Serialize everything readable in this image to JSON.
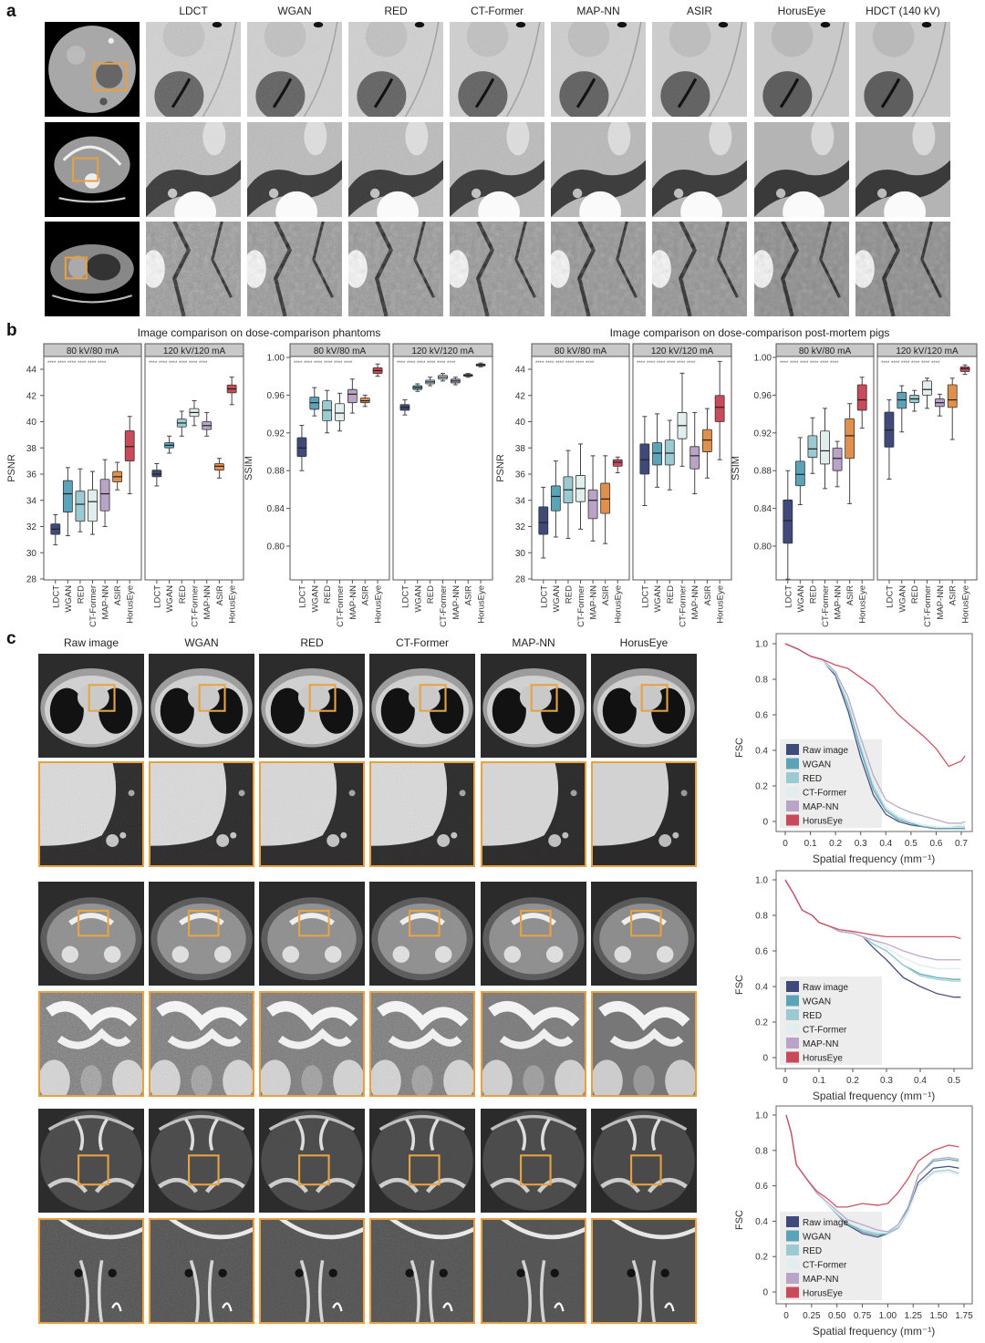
{
  "panel_labels": {
    "a": "a",
    "b": "b",
    "c": "c"
  },
  "panel_a": {
    "columns": [
      "LDCT",
      "WGAN",
      "RED",
      "CT-Former",
      "MAP-NN",
      "ASIR",
      "HorusEye",
      "HDCT (140 kV)"
    ],
    "rows": [
      "phantom",
      "abdomen",
      "thorax"
    ]
  },
  "panel_c": {
    "columns": [
      "Raw image",
      "WGAN",
      "RED",
      "CT-Former",
      "MAP-NN",
      "HorusEye"
    ],
    "rows": [
      "chest",
      "pelvis",
      "skull-base"
    ]
  },
  "colors": {
    "LDCT": "#3f4a7a",
    "WGAN": "#5aa3b8",
    "RED": "#9ccad3",
    "CT-Former": "#e2eeee",
    "MAP-NN": "#b9a3c7",
    "ASIR": "#e0904a",
    "HorusEye": "#c94a5a",
    "Raw image": "#3f4a7a",
    "highlight": "#e8a040"
  },
  "chart_data": [
    {
      "type": "box",
      "title": "Image comparison on dose-comparison phantoms",
      "ylabel": "PSNR",
      "ylim": [
        28,
        45
      ],
      "yticks": [
        28,
        30,
        32,
        34,
        36,
        38,
        40,
        42,
        44
      ],
      "categories": [
        "LDCT",
        "WGAN",
        "RED",
        "CT-Former",
        "MAP-NN",
        "ASIR",
        "HorusEye"
      ],
      "significance": "****",
      "facets": [
        {
          "name": "80 kV/80 mA",
          "boxes": [
            [
              30.6,
              31.4,
              31.8,
              32.2,
              32.9
            ],
            [
              31.3,
              33.1,
              34.5,
              35.5,
              36.5
            ],
            [
              31.6,
              32.4,
              33.7,
              34.7,
              36.4
            ],
            [
              31.4,
              32.4,
              33.9,
              34.8,
              36.2
            ],
            [
              32.0,
              33.2,
              34.5,
              35.6,
              37.1
            ],
            [
              34.8,
              35.4,
              35.8,
              36.2,
              36.9
            ],
            [
              34.5,
              37.0,
              38.1,
              39.3,
              40.4
            ]
          ]
        },
        {
          "name": "120 kV/120 mA",
          "boxes": [
            [
              35.1,
              35.8,
              36.0,
              36.3,
              36.8
            ],
            [
              37.6,
              38.0,
              38.2,
              38.4,
              38.9
            ],
            [
              38.9,
              39.6,
              39.9,
              40.2,
              40.8
            ],
            [
              39.7,
              40.4,
              40.7,
              41.0,
              41.6
            ],
            [
              38.9,
              39.4,
              39.7,
              40.0,
              40.7
            ],
            [
              35.7,
              36.3,
              36.6,
              36.8,
              37.2
            ],
            [
              41.3,
              42.2,
              42.5,
              42.8,
              43.4
            ]
          ]
        }
      ]
    },
    {
      "type": "box",
      "title": "",
      "ylabel": "SSIM",
      "ylim": [
        0.765,
        1.005
      ],
      "yticks": [
        "0.80",
        "0.84",
        "0.88",
        "0.92",
        "0.96",
        "1.00"
      ],
      "categories": [
        "LDCT",
        "WGAN",
        "RED",
        "CT-Former",
        "MAP-NN",
        "ASIR",
        "HorusEye"
      ],
      "significance": "****",
      "facets": [
        {
          "name": "80 kV/80 mA",
          "boxes": [
            [
              0.88,
              0.895,
              0.904,
              0.915,
              0.928
            ],
            [
              0.938,
              0.945,
              0.952,
              0.958,
              0.968
            ],
            [
              0.92,
              0.933,
              0.944,
              0.954,
              0.965
            ],
            [
              0.922,
              0.933,
              0.941,
              0.951,
              0.962
            ],
            [
              0.941,
              0.952,
              0.961,
              0.966,
              0.977
            ],
            [
              0.948,
              0.952,
              0.954,
              0.957,
              0.96
            ],
            [
              0.98,
              0.983,
              0.986,
              0.989,
              0.993
            ]
          ]
        },
        {
          "name": "120 kV/120 mA",
          "boxes": [
            [
              0.939,
              0.944,
              0.947,
              0.95,
              0.955
            ],
            [
              0.964,
              0.966,
              0.968,
              0.97,
              0.972
            ],
            [
              0.97,
              0.972,
              0.974,
              0.976,
              0.979
            ],
            [
              0.975,
              0.977,
              0.979,
              0.981,
              0.983
            ],
            [
              0.971,
              0.973,
              0.975,
              0.977,
              0.979
            ],
            [
              0.979,
              0.98,
              0.981,
              0.982,
              0.983
            ],
            [
              0.99,
              0.991,
              0.992,
              0.993,
              0.994
            ]
          ]
        }
      ]
    },
    {
      "type": "box",
      "title": "Image comparison on dose-comparison post-mortem pigs",
      "ylabel": "PSNR",
      "ylim": [
        28,
        45
      ],
      "yticks": [
        28,
        30,
        32,
        34,
        36,
        38,
        40,
        42,
        44
      ],
      "categories": [
        "LDCT",
        "WGAN",
        "RED",
        "CT-Former",
        "MAP-NN",
        "ASIR",
        "HorusEye"
      ],
      "significance": "****",
      "facets": [
        {
          "name": "80 kV/80 mA",
          "boxes": [
            [
              29.6,
              31.4,
              32.3,
              33.5,
              35.0
            ],
            [
              31.2,
              33.2,
              34.3,
              35.1,
              37.0
            ],
            [
              31.1,
              33.8,
              34.8,
              35.8,
              37.8
            ],
            [
              31.8,
              33.9,
              34.9,
              35.9,
              38.3
            ],
            [
              30.9,
              32.6,
              34.0,
              34.8,
              37.4
            ],
            [
              30.7,
              33.0,
              34.1,
              35.3,
              37.4
            ],
            [
              36.1,
              36.6,
              36.9,
              37.1,
              37.3
            ]
          ]
        },
        {
          "name": "120 kV/120 mA",
          "boxes": [
            [
              33.6,
              36.0,
              37.1,
              38.3,
              40.4
            ],
            [
              35.0,
              36.7,
              37.6,
              38.4,
              40.6
            ],
            [
              34.8,
              36.7,
              37.6,
              38.6,
              40.1
            ],
            [
              36.6,
              38.7,
              39.7,
              40.7,
              43.7
            ],
            [
              34.5,
              36.4,
              37.4,
              38.1,
              40.7
            ],
            [
              35.7,
              37.7,
              38.6,
              39.4,
              41.0
            ],
            [
              37.1,
              40.0,
              41.1,
              42.0,
              44.6
            ]
          ]
        }
      ]
    },
    {
      "type": "box",
      "title": "",
      "ylabel": "SSIM",
      "ylim": [
        0.765,
        1.005
      ],
      "yticks": [
        "0.80",
        "0.84",
        "0.88",
        "0.92",
        "0.96",
        "1.00"
      ],
      "categories": [
        "LDCT",
        "WGAN",
        "RED",
        "CT-Former",
        "MAP-NN",
        "ASIR",
        "HorusEye"
      ],
      "significance": "****",
      "facets": [
        {
          "name": "80 kV/80 mA",
          "boxes": [
            [
              0.765,
              0.803,
              0.827,
              0.849,
              0.88
            ],
            [
              0.844,
              0.864,
              0.876,
              0.89,
              0.915
            ],
            [
              0.877,
              0.894,
              0.903,
              0.917,
              0.936
            ],
            [
              0.861,
              0.887,
              0.901,
              0.922,
              0.946
            ],
            [
              0.863,
              0.88,
              0.893,
              0.904,
              0.911
            ],
            [
              0.845,
              0.893,
              0.917,
              0.935,
              0.951
            ],
            [
              0.925,
              0.944,
              0.955,
              0.971,
              0.979
            ]
          ]
        },
        {
          "name": "120 kV/120 mA",
          "boxes": [
            [
              0.871,
              0.905,
              0.923,
              0.942,
              0.955
            ],
            [
              0.921,
              0.946,
              0.955,
              0.963,
              0.97
            ],
            [
              0.943,
              0.952,
              0.956,
              0.96,
              0.965
            ],
            [
              0.946,
              0.96,
              0.966,
              0.975,
              0.978
            ],
            [
              0.938,
              0.948,
              0.952,
              0.956,
              0.961
            ],
            [
              0.913,
              0.947,
              0.955,
              0.971,
              0.978
            ],
            [
              0.982,
              0.985,
              0.988,
              0.99,
              0.992
            ]
          ]
        }
      ]
    },
    {
      "type": "line",
      "ylabel": "FSC",
      "xlabel": "Spatial frequency (mm⁻¹)",
      "xticks": [
        "0",
        "0.1",
        "0.2",
        "0.3",
        "0.4",
        "0.5",
        "0.6",
        "0.7"
      ],
      "xtick_values": [
        0,
        0.1,
        0.2,
        0.3,
        0.4,
        0.5,
        0.6,
        0.7
      ],
      "yticks": [
        "0",
        "0.2",
        "0.4",
        "0.6",
        "0.8",
        "1.0"
      ],
      "x": [
        0,
        0.05,
        0.1,
        0.15,
        0.2,
        0.25,
        0.3,
        0.35,
        0.4,
        0.45,
        0.5,
        0.55,
        0.6,
        0.65,
        0.7,
        0.715
      ],
      "series": [
        {
          "name": "Raw image",
          "values": [
            1,
            0.97,
            0.93,
            0.9,
            0.82,
            0.62,
            0.36,
            0.15,
            0.04,
            0,
            -0.02,
            -0.03,
            -0.04,
            -0.04,
            -0.04,
            -0.04
          ]
        },
        {
          "name": "WGAN",
          "values": [
            1,
            0.97,
            0.93,
            0.9,
            0.83,
            0.65,
            0.4,
            0.18,
            0.06,
            0.01,
            -0.01,
            -0.03,
            -0.04,
            -0.04,
            -0.04,
            -0.04
          ]
        },
        {
          "name": "RED",
          "values": [
            1,
            0.97,
            0.93,
            0.9,
            0.83,
            0.66,
            0.42,
            0.2,
            0.07,
            0.02,
            0,
            -0.02,
            -0.03,
            -0.03,
            -0.03,
            -0.03
          ]
        },
        {
          "name": "CT-Former",
          "values": [
            1,
            0.97,
            0.93,
            0.9,
            0.84,
            0.68,
            0.44,
            0.22,
            0.08,
            0.03,
            0,
            -0.02,
            -0.03,
            -0.03,
            -0.02,
            -0.02
          ]
        },
        {
          "name": "MAP-NN",
          "values": [
            1,
            0.97,
            0.93,
            0.91,
            0.84,
            0.7,
            0.47,
            0.26,
            0.12,
            0.08,
            0.05,
            0.03,
            0.01,
            -0.01,
            -0.01,
            0
          ]
        },
        {
          "name": "HorusEye",
          "values": [
            1,
            0.97,
            0.93,
            0.91,
            0.88,
            0.86,
            0.81,
            0.76,
            0.68,
            0.6,
            0.54,
            0.48,
            0.41,
            0.31,
            0.34,
            0.37
          ]
        }
      ]
    },
    {
      "type": "line",
      "ylabel": "FSC",
      "xlabel": "Spatial frequency (mm⁻¹)",
      "xticks": [
        "0",
        "0.1",
        "0.2",
        "0.3",
        "0.4",
        "0.5"
      ],
      "xtick_values": [
        0,
        0.1,
        0.2,
        0.3,
        0.4,
        0.5
      ],
      "yticks": [
        "0",
        "0.2",
        "0.4",
        "0.6",
        "0.8",
        "1.0"
      ],
      "x": [
        0,
        0.025,
        0.05,
        0.08,
        0.1,
        0.13,
        0.16,
        0.2,
        0.23,
        0.26,
        0.3,
        0.35,
        0.4,
        0.45,
        0.5,
        0.52
      ],
      "series": [
        {
          "name": "Raw image",
          "values": [
            1,
            0.92,
            0.83,
            0.8,
            0.76,
            0.74,
            0.71,
            0.7,
            0.68,
            0.62,
            0.55,
            0.45,
            0.4,
            0.36,
            0.34,
            0.34
          ]
        },
        {
          "name": "WGAN",
          "values": [
            1,
            0.92,
            0.83,
            0.8,
            0.76,
            0.74,
            0.71,
            0.7,
            0.68,
            0.64,
            0.6,
            0.52,
            0.47,
            0.45,
            0.44,
            0.44
          ]
        },
        {
          "name": "RED",
          "values": [
            1,
            0.92,
            0.83,
            0.8,
            0.76,
            0.74,
            0.71,
            0.7,
            0.68,
            0.64,
            0.6,
            0.52,
            0.46,
            0.44,
            0.43,
            0.43
          ]
        },
        {
          "name": "CT-Former",
          "values": [
            1,
            0.92,
            0.83,
            0.8,
            0.76,
            0.74,
            0.71,
            0.7,
            0.68,
            0.66,
            0.62,
            0.56,
            0.52,
            0.5,
            0.5,
            0.5
          ]
        },
        {
          "name": "MAP-NN",
          "values": [
            1,
            0.92,
            0.83,
            0.8,
            0.76,
            0.74,
            0.71,
            0.7,
            0.68,
            0.66,
            0.64,
            0.6,
            0.57,
            0.55,
            0.55,
            0.55
          ]
        },
        {
          "name": "HorusEye",
          "values": [
            1,
            0.92,
            0.83,
            0.8,
            0.76,
            0.74,
            0.72,
            0.71,
            0.7,
            0.69,
            0.68,
            0.68,
            0.68,
            0.68,
            0.68,
            0.67
          ]
        }
      ]
    },
    {
      "type": "line",
      "ylabel": "FSC",
      "xlabel": "Spatial frequency (mm⁻¹)",
      "xticks": [
        "0",
        "0.25",
        "0.50",
        "0.75",
        "1.00",
        "1.25",
        "1.50",
        "1.75"
      ],
      "xtick_values": [
        0,
        0.25,
        0.5,
        0.75,
        1,
        1.25,
        1.5,
        1.75
      ],
      "yticks": [
        "0",
        "0.2",
        "0.4",
        "0.6",
        "0.8",
        "1.0"
      ],
      "x": [
        0,
        0.05,
        0.1,
        0.2,
        0.3,
        0.4,
        0.5,
        0.6,
        0.75,
        0.9,
        1.0,
        1.1,
        1.2,
        1.3,
        1.45,
        1.6,
        1.7
      ],
      "series": [
        {
          "name": "Raw image",
          "values": [
            1,
            0.9,
            0.72,
            0.64,
            0.56,
            0.5,
            0.44,
            0.38,
            0.33,
            0.31,
            0.33,
            0.36,
            0.45,
            0.62,
            0.7,
            0.71,
            0.7
          ]
        },
        {
          "name": "WGAN",
          "values": [
            1,
            0.9,
            0.72,
            0.64,
            0.56,
            0.5,
            0.44,
            0.39,
            0.34,
            0.32,
            0.33,
            0.37,
            0.47,
            0.66,
            0.74,
            0.75,
            0.74
          ]
        },
        {
          "name": "RED",
          "values": [
            1,
            0.9,
            0.72,
            0.64,
            0.56,
            0.5,
            0.44,
            0.39,
            0.35,
            0.33,
            0.33,
            0.36,
            0.45,
            0.6,
            0.68,
            0.69,
            0.67
          ]
        },
        {
          "name": "CT-Former",
          "values": [
            1,
            0.9,
            0.72,
            0.64,
            0.56,
            0.5,
            0.45,
            0.4,
            0.36,
            0.34,
            0.34,
            0.37,
            0.45,
            0.6,
            0.67,
            0.68,
            0.66
          ]
        },
        {
          "name": "MAP-NN",
          "values": [
            1,
            0.9,
            0.72,
            0.64,
            0.56,
            0.51,
            0.46,
            0.41,
            0.38,
            0.35,
            0.34,
            0.38,
            0.48,
            0.66,
            0.75,
            0.76,
            0.75
          ]
        },
        {
          "name": "HorusEye",
          "values": [
            1,
            0.9,
            0.72,
            0.64,
            0.57,
            0.53,
            0.48,
            0.48,
            0.5,
            0.49,
            0.5,
            0.56,
            0.64,
            0.74,
            0.8,
            0.83,
            0.82
          ]
        }
      ]
    }
  ]
}
